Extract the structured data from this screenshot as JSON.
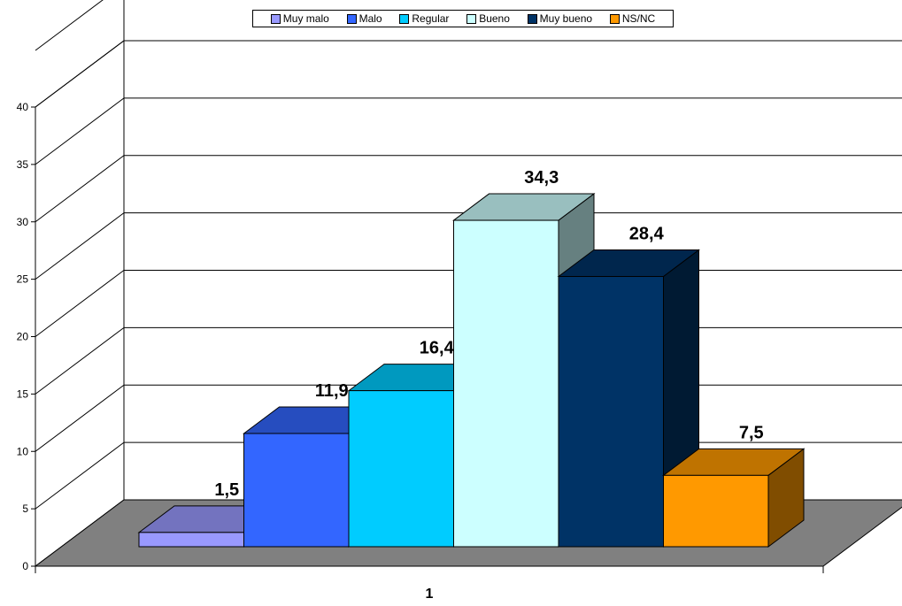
{
  "chart_data": {
    "type": "bar",
    "categories": [
      "1"
    ],
    "series": [
      {
        "name": "Muy malo",
        "values": [
          1.5
        ],
        "color": "#9999ff"
      },
      {
        "name": "Malo",
        "values": [
          11.9
        ],
        "color": "#3366ff"
      },
      {
        "name": "Regular",
        "values": [
          16.4
        ],
        "color": "#00ccff"
      },
      {
        "name": "Bueno",
        "values": [
          34.3
        ],
        "color": "#ccffff"
      },
      {
        "name": "Muy bueno",
        "values": [
          28.4
        ],
        "color": "#003366"
      },
      {
        "name": "NS/NC",
        "values": [
          7.5
        ],
        "color": "#ff9900"
      }
    ],
    "data_labels": [
      "1,5",
      "11,9",
      "16,4",
      "34,3",
      "28,4",
      "7,5"
    ],
    "y_ticks": [
      "0",
      "5",
      "10",
      "15",
      "20",
      "25",
      "30",
      "35",
      "40"
    ],
    "ylim": [
      0,
      40
    ],
    "grid": true,
    "legend_position": "top",
    "floor_color": "#808080"
  }
}
